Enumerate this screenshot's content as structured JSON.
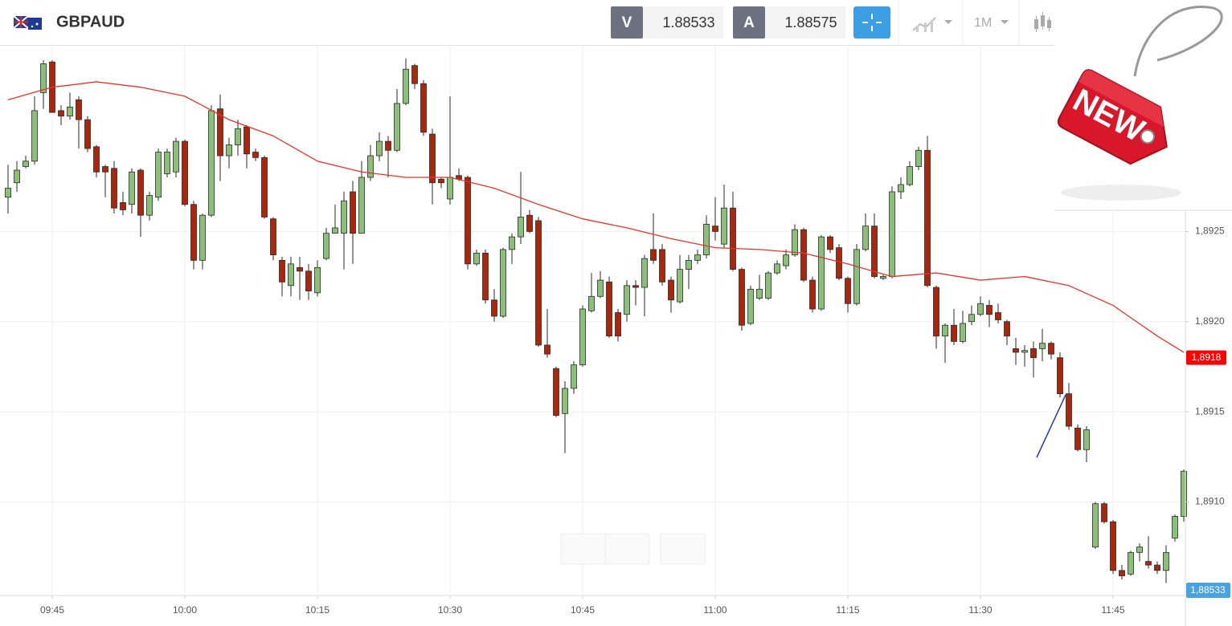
{
  "header": {
    "symbol": "GBPAUD",
    "bid_label": "V",
    "bid": "1.88533",
    "ask_label": "A",
    "ask": "1.88575",
    "timeframe": "1M"
  },
  "badge": "NEW",
  "bid_tag": "1,88533",
  "chart_data": {
    "type": "candlestick",
    "up_color": "#8cbf7a",
    "down_color": "#a8270d",
    "grid": true,
    "ylim": [
      1.89049,
      1.89353
    ],
    "yticks": [
      {
        "value": 1.891,
        "label": "1,8910"
      },
      {
        "value": 1.8915,
        "label": "1,8915"
      },
      {
        "value": 1.892,
        "label": "1,8920"
      },
      {
        "value": 1.8925,
        "label": "1,8925"
      }
    ],
    "xticks": [
      "09:45",
      "10:00",
      "10:15",
      "10:30",
      "10:45",
      "11:00",
      "11:15",
      "11:30",
      "11:45"
    ],
    "categories": [
      "09:40",
      "09:41",
      "09:42",
      "09:43",
      "09:44",
      "09:45",
      "09:46",
      "09:47",
      "09:48",
      "09:49",
      "09:50",
      "09:51",
      "09:52",
      "09:53",
      "09:54",
      "09:55",
      "09:56",
      "09:57",
      "09:58",
      "09:59",
      "10:00",
      "10:01",
      "10:02",
      "10:03",
      "10:04",
      "10:05",
      "10:06",
      "10:07",
      "10:08",
      "10:09",
      "10:10",
      "10:11",
      "10:12",
      "10:13",
      "10:14",
      "10:15",
      "10:16",
      "10:17",
      "10:18",
      "10:19",
      "10:20",
      "10:21",
      "10:22",
      "10:23",
      "10:24",
      "10:25",
      "10:26",
      "10:27",
      "10:28",
      "10:29",
      "10:30",
      "10:31",
      "10:32",
      "10:33",
      "10:34",
      "10:35",
      "10:36",
      "10:37",
      "10:38",
      "10:39",
      "10:40",
      "10:41",
      "10:42",
      "10:43",
      "10:44",
      "10:45",
      "10:46",
      "10:47",
      "10:48",
      "10:49",
      "10:50",
      "10:51",
      "10:52",
      "10:53",
      "10:54",
      "10:55",
      "10:56",
      "10:57",
      "10:58",
      "10:59",
      "11:00",
      "11:01",
      "11:02",
      "11:03",
      "11:04",
      "11:05",
      "11:06",
      "11:07",
      "11:08",
      "11:09",
      "11:10",
      "11:11",
      "11:12",
      "11:13",
      "11:14",
      "11:15",
      "11:16",
      "11:17",
      "11:18",
      "11:19",
      "11:20",
      "11:21",
      "11:22",
      "11:23",
      "11:24",
      "11:25",
      "11:26",
      "11:27",
      "11:28",
      "11:29",
      "11:30",
      "11:31",
      "11:32",
      "11:33",
      "11:34",
      "11:35",
      "11:36",
      "11:37",
      "11:38",
      "11:39",
      "11:40",
      "11:41",
      "11:42",
      "11:43",
      "11:44",
      "11:45",
      "11:46",
      "11:47",
      "11:48",
      "11:49",
      "11:50",
      "11:51",
      "11:52",
      "11:53"
    ],
    "open": [
      1.89269,
      1.89277,
      1.89286,
      1.89289,
      1.89327,
      1.89344,
      1.89317,
      1.89314,
      1.89323,
      1.89312,
      1.89297,
      1.89286,
      1.89285,
      1.89266,
      1.89265,
      1.89284,
      1.89259,
      1.89269,
      1.89282,
      1.89283,
      1.893,
      1.89265,
      1.89234,
      1.89259,
      1.89318,
      1.89292,
      1.89298,
      1.89308,
      1.89294,
      1.89291,
      1.89257,
      1.89234,
      1.8922,
      1.8923,
      1.89228,
      1.89216,
      1.89235,
      1.89249,
      1.89249,
      1.89272,
      1.89249,
      1.8928,
      1.89292,
      1.893,
      1.89295,
      1.89321,
      1.89342,
      1.89332,
      1.89304,
      1.89279,
      1.89268,
      1.89281,
      1.8928,
      1.89232,
      1.89238,
      1.89212,
      1.89203,
      1.8924,
      1.89247,
      1.89259,
      1.89256,
      1.89187,
      1.89174,
      1.89149,
      1.89163,
      1.89176,
      1.89206,
      1.89214,
      1.89222,
      1.89205,
      1.89204,
      1.8922,
      1.89219,
      1.8924,
      1.8924,
      1.89223,
      1.89211,
      1.89229,
      1.89234,
      1.89237,
      1.89253,
      1.89243,
      1.89263,
      1.89229,
      1.89199,
      1.89213,
      1.89213,
      1.89227,
      1.89231,
      1.89237,
      1.89251,
      1.89223,
      1.89207,
      1.89247,
      1.89241,
      1.89224,
      1.8921,
      1.8924,
      1.89253,
      1.89224,
      1.89225,
      1.89272,
      1.89276,
      1.89286,
      1.89295,
      1.89219,
      1.89192,
      1.89198,
      1.89189,
      1.892,
      1.89204,
      1.89209,
      1.89205,
      1.892,
      1.89185,
      1.89183,
      1.89185,
      1.89185,
      1.89188,
      1.8918,
      1.8916,
      1.89141,
      1.89129,
      1.89075,
      1.89099,
      1.89089,
      1.89062,
      1.8906,
      1.89072,
      1.89067,
      1.89065,
      1.89062,
      1.8908,
      1.89092
    ],
    "high": [
      1.89287,
      1.89289,
      1.89292,
      1.89325,
      1.89345,
      1.89345,
      1.8932,
      1.89327,
      1.89325,
      1.89314,
      1.89298,
      1.89287,
      1.89289,
      1.89272,
      1.89285,
      1.89285,
      1.89272,
      1.89296,
      1.89296,
      1.89302,
      1.89301,
      1.89267,
      1.8926,
      1.8932,
      1.89326,
      1.89302,
      1.89312,
      1.89309,
      1.89296,
      1.89292,
      1.89258,
      1.89236,
      1.89236,
      1.89236,
      1.89232,
      1.89234,
      1.89252,
      1.89265,
      1.89272,
      1.89278,
      1.89289,
      1.89298,
      1.89305,
      1.89303,
      1.89329,
      1.89346,
      1.89343,
      1.89334,
      1.89307,
      1.8928,
      1.89325,
      1.89285,
      1.89281,
      1.8924,
      1.8924,
      1.89218,
      1.89241,
      1.89249,
      1.89283,
      1.89262,
      1.89258,
      1.89207,
      1.89175,
      1.89167,
      1.89178,
      1.89209,
      1.89227,
      1.89228,
      1.89225,
      1.89207,
      1.89223,
      1.89223,
      1.89237,
      1.8926,
      1.89243,
      1.89225,
      1.89237,
      1.89237,
      1.8924,
      1.89259,
      1.89269,
      1.89276,
      1.89272,
      1.8923,
      1.8922,
      1.89226,
      1.89228,
      1.89234,
      1.8924,
      1.89254,
      1.89252,
      1.89225,
      1.89248,
      1.89248,
      1.89243,
      1.89225,
      1.89243,
      1.8926,
      1.8926,
      1.89226,
      1.89275,
      1.8928,
      1.89289,
      1.89297,
      1.89303,
      1.8922,
      1.89199,
      1.89207,
      1.89206,
      1.89209,
      1.89214,
      1.89212,
      1.8921,
      1.89201,
      1.89191,
      1.89187,
      1.89189,
      1.89196,
      1.89189,
      1.89183,
      1.89166,
      1.89143,
      1.89142,
      1.891,
      1.891,
      1.8909,
      1.89065,
      1.89073,
      1.89077,
      1.89081,
      1.89067,
      1.89076,
      1.89093,
      1.89118
    ],
    "low": [
      1.8926,
      1.89272,
      1.89285,
      1.89287,
      1.89318,
      1.89316,
      1.89309,
      1.89312,
      1.89296,
      1.89294,
      1.8928,
      1.89269,
      1.8926,
      1.89259,
      1.8926,
      1.89247,
      1.89256,
      1.89267,
      1.8928,
      1.8928,
      1.89264,
      1.89229,
      1.89229,
      1.89258,
      1.89278,
      1.89285,
      1.89292,
      1.89285,
      1.89289,
      1.89257,
      1.89234,
      1.89214,
      1.89214,
      1.89212,
      1.89212,
      1.89214,
      1.89234,
      1.89249,
      1.89229,
      1.89232,
      1.89249,
      1.89278,
      1.89289,
      1.8928,
      1.89294,
      1.8932,
      1.89329,
      1.89303,
      1.89265,
      1.89274,
      1.89265,
      1.89278,
      1.89229,
      1.89231,
      1.8921,
      1.892,
      1.89202,
      1.89232,
      1.89243,
      1.89249,
      1.89186,
      1.8918,
      1.89147,
      1.89127,
      1.8916,
      1.89175,
      1.89205,
      1.89213,
      1.89191,
      1.89189,
      1.892,
      1.89209,
      1.89203,
      1.89232,
      1.8922,
      1.89205,
      1.8921,
      1.89218,
      1.89232,
      1.89235,
      1.89245,
      1.89241,
      1.89228,
      1.89195,
      1.89198,
      1.89212,
      1.89212,
      1.89226,
      1.89229,
      1.89236,
      1.89222,
      1.89205,
      1.89206,
      1.89238,
      1.89223,
      1.89205,
      1.89209,
      1.89239,
      1.89224,
      1.89223,
      1.89224,
      1.89268,
      1.89275,
      1.89284,
      1.89219,
      1.89185,
      1.89177,
      1.89187,
      1.89188,
      1.89198,
      1.89203,
      1.89197,
      1.89199,
      1.89187,
      1.89176,
      1.89175,
      1.89169,
      1.89178,
      1.89179,
      1.89158,
      1.8914,
      1.89128,
      1.89122,
      1.89074,
      1.89088,
      1.8906,
      1.89057,
      1.89059,
      1.89067,
      1.89063,
      1.8906,
      1.89055,
      1.89078,
      1.89089
    ],
    "close": [
      1.89274,
      1.89284,
      1.89289,
      1.89317,
      1.89343,
      1.89316,
      1.89314,
      1.89319,
      1.89312,
      1.89296,
      1.89283,
      1.89283,
      1.89263,
      1.89262,
      1.89283,
      1.89259,
      1.8927,
      1.89294,
      1.89294,
      1.893,
      1.89265,
      1.89234,
      1.89259,
      1.89317,
      1.89292,
      1.89298,
      1.89307,
      1.89293,
      1.89291,
      1.89258,
      1.89237,
      1.89222,
      1.89232,
      1.89228,
      1.89217,
      1.8923,
      1.89249,
      1.89252,
      1.89267,
      1.89249,
      1.8928,
      1.89292,
      1.893,
      1.89295,
      1.89321,
      1.8934,
      1.89332,
      1.89305,
      1.89277,
      1.89277,
      1.8928,
      1.89279,
      1.89232,
      1.89238,
      1.89212,
      1.89203,
      1.8924,
      1.89247,
      1.89258,
      1.8925,
      1.89187,
      1.89182,
      1.89148,
      1.89163,
      1.89176,
      1.89207,
      1.89214,
      1.89223,
      1.89192,
      1.89192,
      1.8922,
      1.89219,
      1.89235,
      1.89234,
      1.89222,
      1.89212,
      1.89229,
      1.89234,
      1.89237,
      1.89254,
      1.8925,
      1.89263,
      1.89229,
      1.89198,
      1.89218,
      1.89218,
      1.89227,
      1.89232,
      1.89237,
      1.89251,
      1.89223,
      1.89207,
      1.89247,
      1.8924,
      1.89224,
      1.8921,
      1.8924,
      1.89253,
      1.89225,
      1.89225,
      1.89272,
      1.89276,
      1.89286,
      1.89295,
      1.8922,
      1.89192,
      1.89198,
      1.89189,
      1.89199,
      1.89204,
      1.8921,
      1.89204,
      1.89201,
      1.89192,
      1.89183,
      1.89184,
      1.8918,
      1.89188,
      1.89182,
      1.8916,
      1.89142,
      1.89129,
      1.8914,
      1.89099,
      1.89089,
      1.89062,
      1.89059,
      1.89072,
      1.89075,
      1.89065,
      1.89062,
      1.89072,
      1.89092,
      1.89117
    ],
    "ma": {
      "color": "#e8322e",
      "x": [
        "09:40",
        "09:45",
        "09:50",
        "09:55",
        "10:00",
        "10:05",
        "10:10",
        "10:15",
        "10:20",
        "10:25",
        "10:30",
        "10:35",
        "10:40",
        "10:45",
        "10:50",
        "10:55",
        "11:00",
        "11:05",
        "11:10",
        "11:15",
        "11:20",
        "11:25",
        "11:30",
        "11:35",
        "11:40",
        "11:45",
        "11:50",
        "11:53"
      ],
      "values": [
        1.89323,
        1.8933,
        1.89333,
        1.8933,
        1.89325,
        1.89312,
        1.89303,
        1.89289,
        1.89283,
        1.8928,
        1.8928,
        1.89274,
        1.89265,
        1.89257,
        1.89252,
        1.89246,
        1.89241,
        1.8924,
        1.89238,
        1.89232,
        1.89225,
        1.89227,
        1.89223,
        1.89225,
        1.8922,
        1.89209,
        1.89192,
        1.89183
      ]
    },
    "ma_tag": {
      "value": 1.8918,
      "label": "1,8918",
      "color": "#ff0000"
    }
  }
}
